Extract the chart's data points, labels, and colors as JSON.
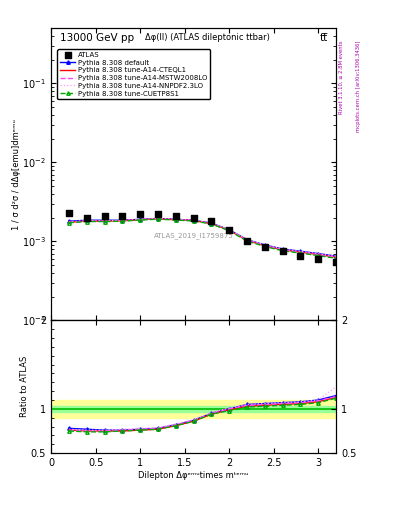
{
  "title_top": "13000 GeV pp",
  "title_top_right": "tt̅",
  "title_center": "Δφ(ll) (ATLAS dileptonic ttbar)",
  "watermark": "ATLAS_2019_I1759875",
  "right_label_top": "Rivet 3.1.10, ≥ 2.8M events",
  "right_label_bottom": "mcplots.cern.ch [arXiv:1306.3436]",
  "xlabel": "Dilepton Δφᵉᵐᵘtimes mᵗᵉᵐᵘ",
  "ylabel_main": "1 / σ d²σ / dΔφ[emu]dmᵉᵐᵘ",
  "ylabel_ratio": "Ratio to ATLAS",
  "ylim_main": [
    0.0001,
    0.5
  ],
  "ylim_ratio": [
    0.5,
    2.0
  ],
  "xlim": [
    0.0,
    3.2
  ],
  "x_data": [
    0.2,
    0.4,
    0.6,
    0.8,
    1.0,
    1.2,
    1.4,
    1.6,
    1.8,
    2.0,
    2.2,
    2.4,
    2.6,
    2.8,
    3.0,
    3.2
  ],
  "atlas_y": [
    0.0023,
    0.002,
    0.0021,
    0.0021,
    0.0022,
    0.0022,
    0.0021,
    0.002,
    0.0018,
    0.0014,
    0.001,
    0.00085,
    0.00075,
    0.00065,
    0.0006,
    0.00055
  ],
  "pythia_default_y": [
    0.0018,
    0.00185,
    0.00185,
    0.00185,
    0.0019,
    0.00195,
    0.0019,
    0.00185,
    0.0017,
    0.0014,
    0.00105,
    0.0009,
    0.0008,
    0.00075,
    0.0007,
    0.00065
  ],
  "pythia_cteql1_y": [
    0.00175,
    0.0018,
    0.0018,
    0.00182,
    0.00188,
    0.00193,
    0.00188,
    0.00183,
    0.00168,
    0.00138,
    0.00103,
    0.00088,
    0.00078,
    0.00073,
    0.00068,
    0.00063
  ],
  "pythia_mstw_y": [
    0.00175,
    0.0018,
    0.0018,
    0.00182,
    0.00188,
    0.00193,
    0.00188,
    0.00183,
    0.00168,
    0.00138,
    0.00103,
    0.00088,
    0.00078,
    0.00073,
    0.00068,
    0.00063
  ],
  "pythia_nnpdf_y": [
    0.00178,
    0.00182,
    0.00182,
    0.00184,
    0.0019,
    0.00195,
    0.0019,
    0.00185,
    0.0017,
    0.0014,
    0.00105,
    0.0009,
    0.0008,
    0.00075,
    0.0007,
    0.00065
  ],
  "pythia_cuetp_y": [
    0.00172,
    0.00178,
    0.00178,
    0.0018,
    0.00186,
    0.00191,
    0.00186,
    0.00181,
    0.00166,
    0.00136,
    0.00101,
    0.00086,
    0.00076,
    0.00071,
    0.00066,
    0.00061
  ],
  "ratio_default": [
    0.78,
    0.77,
    0.76,
    0.76,
    0.77,
    0.78,
    0.82,
    0.87,
    0.95,
    1.0,
    1.05,
    1.06,
    1.07,
    1.08,
    1.1,
    1.15
  ],
  "ratio_cteql1": [
    0.76,
    0.75,
    0.75,
    0.75,
    0.76,
    0.77,
    0.81,
    0.86,
    0.94,
    0.99,
    1.03,
    1.04,
    1.05,
    1.06,
    1.08,
    1.13
  ],
  "ratio_mstw": [
    0.76,
    0.75,
    0.75,
    0.76,
    0.77,
    0.78,
    0.82,
    0.87,
    0.95,
    1.0,
    1.04,
    1.05,
    1.06,
    1.07,
    1.09,
    1.14
  ],
  "ratio_nnpdf": [
    0.77,
    0.76,
    0.76,
    0.77,
    0.78,
    0.79,
    0.83,
    0.88,
    0.96,
    1.01,
    1.05,
    1.06,
    1.07,
    1.08,
    1.1,
    1.25
  ],
  "ratio_cuetp": [
    0.75,
    0.74,
    0.74,
    0.75,
    0.76,
    0.77,
    0.81,
    0.86,
    0.94,
    0.98,
    1.02,
    1.03,
    1.04,
    1.05,
    1.07,
    1.12
  ],
  "color_atlas": "#000000",
  "color_default": "#0000FF",
  "color_cteql1": "#FF0000",
  "color_mstw": "#FF44FF",
  "color_nnpdf": "#FF99FF",
  "color_cuetp": "#00AA00",
  "band_yellow": "#FFFF99",
  "band_green": "#99FF99",
  "line_green": "#00BB00"
}
